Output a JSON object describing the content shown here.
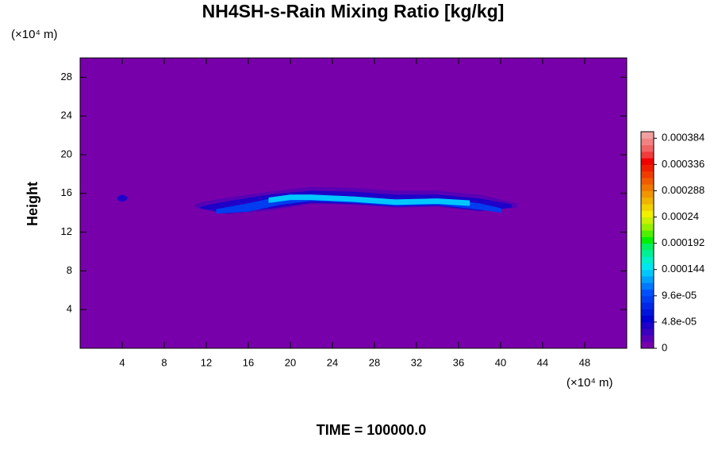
{
  "chart_data": {
    "type": "contour",
    "title": "NH4SH-s-Rain Mixing Ratio [kg/kg]",
    "y_label": "Height",
    "x_unit": "(×10⁴ m)",
    "y_unit": "(×10⁴ m)",
    "time_label": "TIME = 100000.0",
    "xlim": [
      0,
      52
    ],
    "ylim": [
      0,
      30
    ],
    "xticks": [
      4,
      8,
      12,
      16,
      20,
      24,
      28,
      32,
      36,
      40,
      44,
      48
    ],
    "yticks": [
      4,
      8,
      12,
      16,
      20,
      24,
      28
    ],
    "clim": [
      0,
      0.000396
    ],
    "cticks": [
      0,
      {
        "value": 4.8e-05,
        "label": "4.8e-05"
      },
      {
        "value": 9.6e-05,
        "label": "9.6e-05"
      },
      0.000144,
      0.000192,
      0.00024,
      0.000288,
      0.000336,
      0.000384
    ],
    "colors": [
      "#7800aa",
      "#5a00b4",
      "#3c00be",
      "#1e00c8",
      "#0000d2",
      "#0014dc",
      "#0028e6",
      "#003cf0",
      "#0050ff",
      "#0078ff",
      "#00a0ff",
      "#00c8ff",
      "#00e6f0",
      "#00f0c8",
      "#00f096",
      "#00f064",
      "#00f000",
      "#50f000",
      "#96f000",
      "#c8f000",
      "#f0f000",
      "#f0d200",
      "#f0b400",
      "#f09600",
      "#f07800",
      "#f05a00",
      "#f03c00",
      "#f01e00",
      "#f00000",
      "#f03c3c",
      "#f06464",
      "#f08282",
      "#f0a0a0"
    ],
    "regions": [
      {
        "value": 1.2e-05,
        "x": [
          11,
          14,
          18,
          22,
          26,
          30,
          34,
          38,
          41.5
        ],
        "y_top": [
          14.9,
          15.5,
          16.1,
          16.6,
          16.5,
          16.2,
          16.2,
          15.8,
          14.9
        ],
        "y_bottom": [
          14.6,
          13.9,
          14.3,
          15.0,
          14.9,
          14.6,
          14.7,
          14.2,
          14.6
        ]
      },
      {
        "value": 3.6e-05,
        "x": [
          11.5,
          14,
          18,
          22,
          26,
          30,
          34,
          38,
          41
        ],
        "y_top": [
          14.6,
          15.1,
          15.8,
          16.2,
          16.1,
          15.8,
          15.8,
          15.4,
          14.8
        ],
        "y_bottom": [
          14.5,
          14.1,
          14.5,
          15.1,
          15.0,
          14.7,
          14.8,
          14.3,
          14.6
        ]
      },
      {
        "value": 3.6e-05,
        "x": [
          3.6,
          4,
          4.4
        ],
        "y_top": [
          15.6,
          15.8,
          15.6
        ],
        "y_bottom": [
          15.4,
          15.2,
          15.4
        ]
      },
      {
        "value": 8.4e-05,
        "x": [
          13,
          16,
          19,
          22,
          26,
          30,
          34,
          38,
          40
        ],
        "y_top": [
          14.3,
          14.9,
          15.6,
          15.8,
          15.6,
          15.3,
          15.4,
          14.9,
          14.4
        ],
        "y_bottom": [
          14.0,
          14.2,
          14.9,
          15.3,
          15.1,
          14.8,
          14.9,
          14.4,
          14.1
        ]
      },
      {
        "value": 0.000132,
        "x": [
          18,
          20,
          22,
          26,
          30,
          34,
          37
        ],
        "y_top": [
          15.5,
          15.8,
          15.8,
          15.6,
          15.3,
          15.4,
          15.2
        ],
        "y_bottom": [
          15.1,
          15.4,
          15.4,
          15.2,
          14.9,
          15.0,
          14.8
        ]
      }
    ]
  }
}
